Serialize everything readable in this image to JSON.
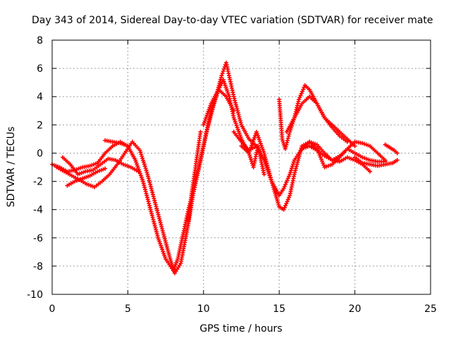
{
  "chart_data": {
    "type": "scatter",
    "title": "Day 343 of 2014, Sidereal Day-to-day VTEC variation (SDTVAR) for receiver mate",
    "xlabel": "GPS time / hours",
    "ylabel": "SDTVAR / TECUs",
    "xlim": [
      0,
      25
    ],
    "ylim": [
      -10,
      8
    ],
    "xticks": [
      0,
      5,
      10,
      15,
      20,
      25
    ],
    "yticks": [
      -10,
      -8,
      -6,
      -4,
      -2,
      0,
      2,
      4,
      6,
      8
    ],
    "grid": true,
    "marker": "+",
    "color": "#ff0000",
    "series": [
      {
        "x": [
          0.0,
          0.5,
          1.0,
          1.5,
          2.0,
          2.5,
          3.0,
          3.5,
          4.0,
          4.5,
          5.0,
          5.5,
          6.0,
          6.5,
          7.0,
          7.5,
          8.0,
          8.3,
          8.7,
          9.0,
          9.5,
          10.0,
          10.5,
          11.0,
          11.3,
          11.7,
          12.0,
          12.5,
          13.0
        ],
        "y": [
          -0.8,
          -1.0,
          -1.3,
          -1.2,
          -1.0,
          -0.9,
          -0.7,
          0.0,
          0.5,
          0.8,
          0.5,
          -0.5,
          -2.0,
          -4.0,
          -6.0,
          -7.5,
          -8.3,
          -7.5,
          -5.5,
          -4.0,
          -2.0,
          0.5,
          3.0,
          4.5,
          5.2,
          4.0,
          2.5,
          1.0,
          0.0
        ]
      },
      {
        "x": [
          0.3,
          0.8,
          1.3,
          1.8,
          2.3,
          2.8,
          3.3,
          3.8,
          4.3,
          4.8,
          5.3,
          5.8,
          6.3,
          6.8,
          7.3,
          7.8,
          8.1,
          8.5,
          9.0,
          9.3,
          9.7,
          10.2,
          10.7,
          11.2,
          11.5,
          12.0,
          12.5,
          13.0,
          13.5
        ],
        "y": [
          -1.0,
          -1.3,
          -1.6,
          -1.9,
          -2.2,
          -2.4,
          -2.0,
          -1.5,
          -0.8,
          0.0,
          0.8,
          0.2,
          -1.5,
          -3.5,
          -5.5,
          -7.5,
          -8.5,
          -7.8,
          -5.0,
          -3.0,
          -1.0,
          1.5,
          3.5,
          5.5,
          6.4,
          4.0,
          2.0,
          1.0,
          0.5
        ]
      },
      {
        "x": [
          0.7,
          1.2,
          1.7,
          2.2,
          2.7,
          3.2,
          3.7,
          4.2,
          4.7,
          5.2,
          5.7
        ],
        "y": [
          -0.3,
          -0.8,
          -1.5,
          -1.3,
          -1.2,
          -0.8,
          -0.4,
          -0.5,
          -0.8,
          -1.0,
          -1.3
        ]
      },
      {
        "x": [
          1.0,
          1.5,
          2.0,
          2.5,
          3.0,
          3.5
        ],
        "y": [
          -2.3,
          -2.0,
          -1.8,
          -1.6,
          -1.3,
          -1.1
        ]
      },
      {
        "x": [
          3.5,
          4.0,
          4.5,
          5.0
        ],
        "y": [
          0.9,
          0.8,
          0.7,
          0.5
        ]
      },
      {
        "x": [
          12.0,
          12.5,
          13.0,
          13.5,
          14.0,
          14.5,
          15.0,
          15.3,
          15.7,
          16.0,
          16.5,
          17.0,
          17.5,
          18.0,
          18.5,
          19.0,
          19.5,
          20.0,
          20.5,
          21.0,
          21.5,
          22.0
        ],
        "y": [
          1.5,
          0.8,
          0.2,
          0.5,
          -0.5,
          -2.0,
          -3.0,
          -2.5,
          -1.5,
          -0.5,
          0.3,
          0.5,
          0.2,
          -0.2,
          -0.5,
          -0.2,
          0.3,
          0.0,
          -0.3,
          -0.5,
          -0.6,
          -0.6
        ]
      },
      {
        "x": [
          12.5,
          13.0,
          13.5,
          14.0,
          14.5,
          15.0,
          15.3,
          15.7,
          16.0,
          16.5,
          17.0,
          17.5,
          18.0,
          18.5,
          19.0,
          19.5,
          20.0,
          20.5,
          21.0,
          21.5,
          22.0
        ],
        "y": [
          0.5,
          0.0,
          1.5,
          0.0,
          -2.0,
          -3.8,
          -4.0,
          -3.0,
          -1.5,
          0.5,
          0.8,
          0.3,
          -1.0,
          -0.8,
          -0.3,
          0.3,
          0.8,
          0.7,
          0.5,
          0.0,
          -0.5
        ]
      },
      {
        "x": [
          15.0,
          15.2,
          15.4,
          15.7,
          16.0,
          16.3,
          16.7,
          17.0,
          17.5,
          18.0,
          18.5,
          19.0,
          19.5,
          20.0
        ],
        "y": [
          3.8,
          1.0,
          0.3,
          1.5,
          2.5,
          3.8,
          4.8,
          4.5,
          3.5,
          2.5,
          2.0,
          1.5,
          1.0,
          0.5
        ]
      },
      {
        "x": [
          15.5,
          16.0,
          16.5,
          17.0,
          17.5,
          18.0,
          18.5,
          19.0,
          19.5
        ],
        "y": [
          1.5,
          2.5,
          3.5,
          4.0,
          3.5,
          2.5,
          1.8,
          1.2,
          0.8
        ]
      },
      {
        "x": [
          16.5,
          17.0,
          17.5,
          18.0,
          18.5,
          19.0,
          19.5,
          20.0,
          20.5,
          21.0
        ],
        "y": [
          0.3,
          0.8,
          0.6,
          0.0,
          -0.5,
          -0.6,
          -0.3,
          -0.5,
          -0.8,
          -1.3
        ]
      },
      {
        "x": [
          20.0,
          20.5,
          21.0,
          21.5,
          22.0,
          22.5,
          22.8
        ],
        "y": [
          -0.3,
          -0.7,
          -0.8,
          -0.9,
          -0.8,
          -0.7,
          -0.5
        ]
      },
      {
        "x": [
          22.0,
          22.3,
          22.6,
          22.8
        ],
        "y": [
          0.6,
          0.4,
          0.2,
          0.0
        ]
      },
      {
        "x": [
          10.0,
          10.5,
          11.0,
          11.5,
          12.0
        ],
        "y": [
          2.0,
          3.5,
          4.5,
          4.0,
          3.0
        ]
      },
      {
        "x": [
          9.0,
          9.2,
          9.4,
          9.6,
          9.8
        ],
        "y": [
          -4.8,
          -3.0,
          -1.5,
          0.0,
          1.5
        ]
      },
      {
        "x": [
          13.0,
          13.3,
          13.6,
          14.0
        ],
        "y": [
          0.0,
          -1.0,
          0.5,
          -1.5
        ]
      }
    ]
  }
}
